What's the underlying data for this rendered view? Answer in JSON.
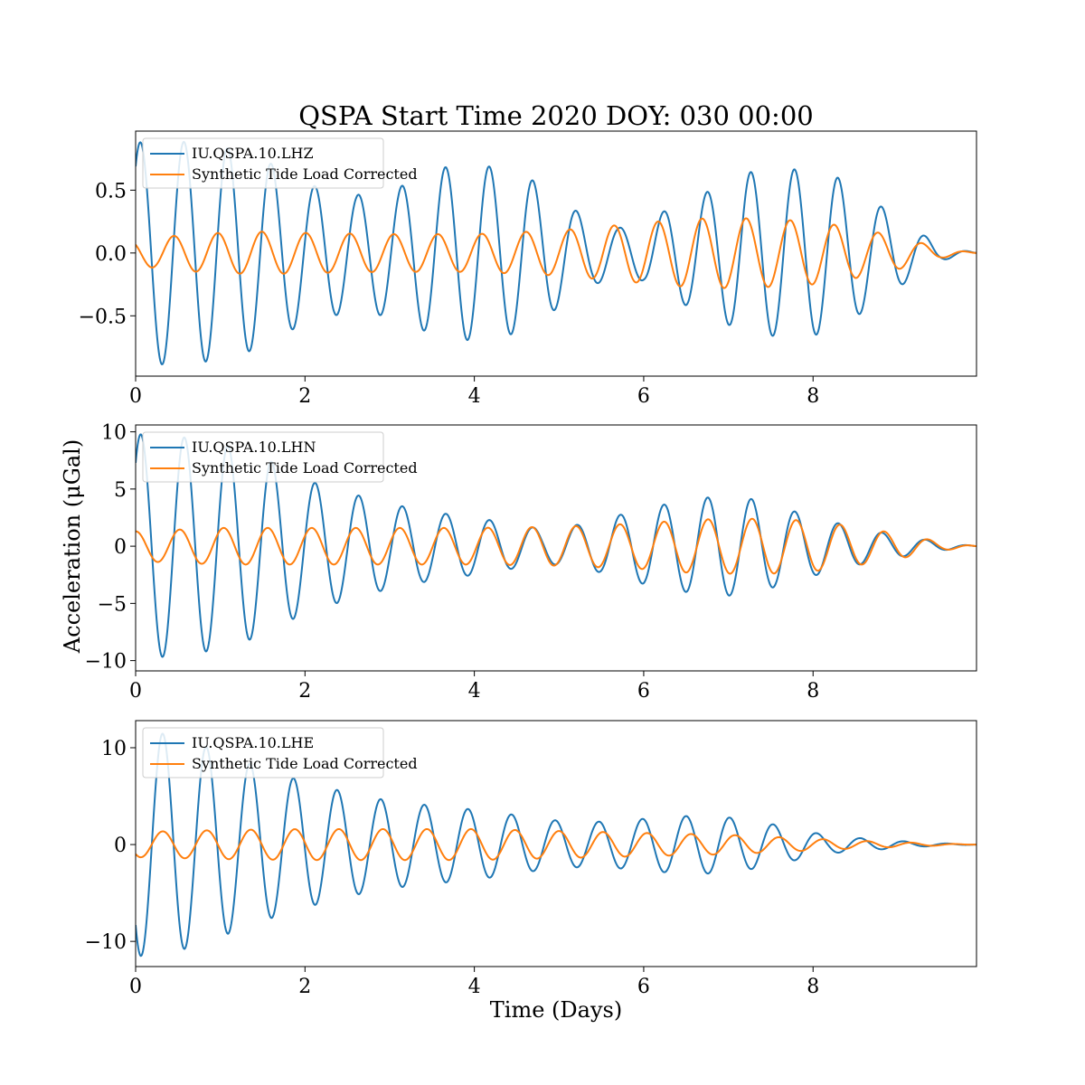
{
  "colors": {
    "observed": "#1f77b4",
    "synthetic": "#ff7f0e"
  },
  "chart_data": {
    "type": "line",
    "title": "QSPA Start Time 2020 DOY: 030 00:00",
    "xlabel": "Time (Days)",
    "ylabel": "Acceleration (μGal)",
    "xlim": [
      0,
      9.93
    ],
    "xticks": [
      0,
      2,
      4,
      6,
      8
    ],
    "legend_position": "upper-left",
    "grid": false,
    "panels": [
      {
        "ylim": [
          -0.98,
          0.97
        ],
        "yticks": [
          -0.5,
          0.0,
          0.5
        ],
        "yticklabels": [
          "−0.5",
          "0.0",
          "0.5"
        ],
        "series": [
          {
            "name": "IU.QSPA.10.LHZ",
            "color": "#1f77b4",
            "t0": 0.055,
            "period": 0.515,
            "envelope_x": [
              0,
              0.5,
              1.0,
              1.5,
              2.0,
              2.6,
              3.1,
              3.6,
              4.1,
              4.6,
              5.1,
              5.4,
              5.7,
              6.0,
              6.3,
              6.8,
              7.2,
              7.7,
              8.2,
              8.7,
              9.1,
              9.5,
              9.93
            ],
            "envelope_y": [
              0.88,
              0.89,
              0.85,
              0.75,
              0.55,
              0.46,
              0.52,
              0.68,
              0.7,
              0.62,
              0.38,
              0.25,
              0.2,
              0.22,
              0.36,
              0.5,
              0.64,
              0.67,
              0.64,
              0.42,
              0.23,
              0.06,
              0.0
            ]
          },
          {
            "name": "Synthetic Tide Load Corrected",
            "color": "#ff7f0e",
            "t0": 0.45,
            "period": 0.52,
            "envelope_x": [
              0,
              0.5,
              1.0,
              1.5,
              2.0,
              3.0,
              4.0,
              5.0,
              5.5,
              6.0,
              6.5,
              7.0,
              7.5,
              8.0,
              8.5,
              9.0,
              9.5,
              9.93
            ],
            "envelope_y": [
              0.1,
              0.14,
              0.16,
              0.17,
              0.16,
              0.15,
              0.15,
              0.18,
              0.21,
              0.24,
              0.27,
              0.28,
              0.27,
              0.25,
              0.2,
              0.13,
              0.04,
              0.0
            ]
          }
        ]
      },
      {
        "ylim": [
          -10.9,
          10.6
        ],
        "yticks": [
          -10,
          -5,
          0,
          5,
          10
        ],
        "yticklabels": [
          "−10",
          "−5",
          "0",
          "5",
          "10"
        ],
        "series": [
          {
            "name": "IU.QSPA.10.LHN",
            "color": "#1f77b4",
            "t0": 0.06,
            "period": 0.515,
            "envelope_x": [
              0,
              0.5,
              1.0,
              1.5,
              2.0,
              2.5,
              3.0,
              3.5,
              4.0,
              4.5,
              4.8,
              5.1,
              5.5,
              6.0,
              6.5,
              6.9,
              7.3,
              7.8,
              8.3,
              8.8,
              9.3,
              9.7,
              9.93
            ],
            "envelope_y": [
              9.8,
              9.6,
              9.0,
              7.8,
              5.8,
              4.7,
              3.7,
              3.0,
              2.5,
              1.9,
              1.5,
              1.7,
              2.3,
              3.3,
              4.0,
              4.4,
              4.1,
              3.0,
              2.0,
              1.2,
              0.6,
              0.2,
              0.0
            ]
          },
          {
            "name": "Synthetic Tide Load Corrected",
            "color": "#ff7f0e",
            "t0": 0.0,
            "period": 0.52,
            "envelope_x": [
              0,
              1.0,
              2.0,
              3.0,
              4.0,
              5.0,
              6.0,
              6.5,
              7.0,
              7.5,
              8.0,
              8.5,
              9.0,
              9.5,
              9.93
            ],
            "envelope_y": [
              1.3,
              1.6,
              1.6,
              1.6,
              1.6,
              1.7,
              2.0,
              2.3,
              2.4,
              2.4,
              2.2,
              1.7,
              1.1,
              0.4,
              0.0
            ]
          }
        ]
      },
      {
        "ylim": [
          -12.6,
          12.8
        ],
        "yticks": [
          -10,
          0,
          10
        ],
        "yticklabels": [
          "−10",
          "0",
          "10"
        ],
        "series": [
          {
            "name": "IU.QSPA.10.LHE",
            "color": "#1f77b4",
            "t0": 0.32,
            "period": 0.515,
            "envelope_x": [
              0,
              0.3,
              0.8,
              1.3,
              1.8,
              2.3,
              2.8,
              3.3,
              3.8,
              4.3,
              4.8,
              5.3,
              5.8,
              6.3,
              6.8,
              7.3,
              7.8,
              8.2,
              8.8,
              9.3,
              9.93
            ],
            "envelope_y": [
              11.5,
              11.5,
              10.2,
              8.5,
              7.0,
              5.8,
              4.8,
              4.2,
              3.8,
              3.3,
              2.6,
              2.3,
              2.5,
              2.9,
              3.0,
              2.5,
              1.6,
              0.9,
              0.5,
              0.2,
              0.0
            ]
          },
          {
            "name": "Synthetic Tide Load Corrected",
            "color": "#ff7f0e",
            "t0": 0.32,
            "period": 0.52,
            "envelope_x": [
              0,
              0.5,
              1.0,
              2.0,
              3.0,
              4.0,
              5.0,
              6.0,
              7.0,
              7.5,
              8.0,
              8.5,
              9.0,
              9.5,
              9.93
            ],
            "envelope_y": [
              1.3,
              1.4,
              1.5,
              1.6,
              1.6,
              1.6,
              1.4,
              1.2,
              1.0,
              0.8,
              0.6,
              0.4,
              0.25,
              0.1,
              0.0
            ]
          }
        ]
      }
    ]
  }
}
